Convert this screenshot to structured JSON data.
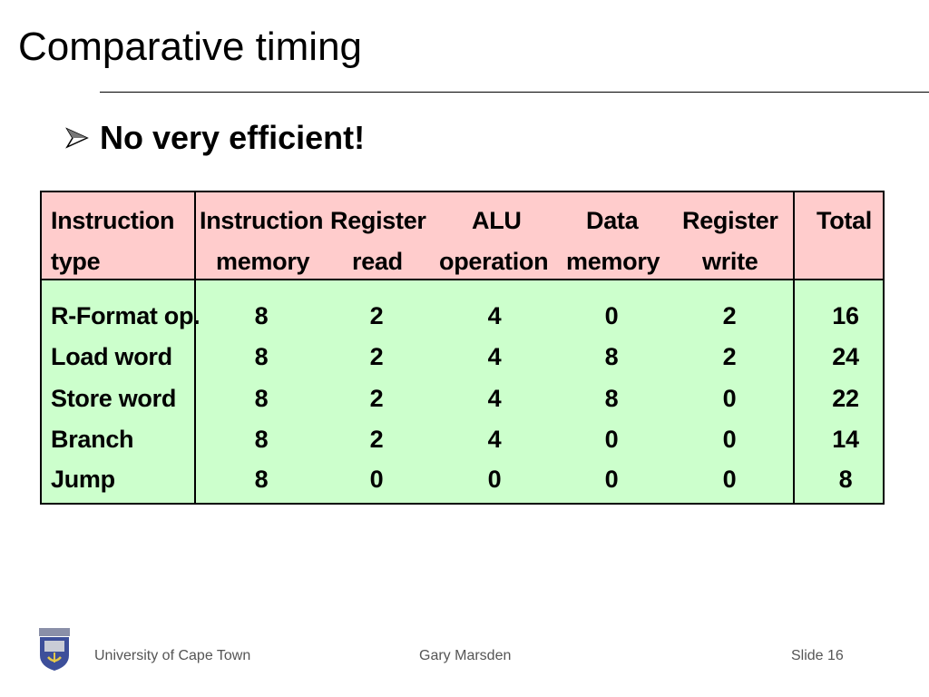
{
  "slide": {
    "title": "Comparative timing",
    "bullet": "No very efficient!"
  },
  "table": {
    "header_line1": [
      "Instruction",
      "Instruction",
      "Register",
      "ALU",
      "Data",
      "Register",
      "Total"
    ],
    "header_line2": [
      "type",
      "memory",
      "read",
      "operation",
      "memory",
      "write",
      ""
    ],
    "rows": [
      [
        "R-Format op.",
        "8",
        "2",
        "4",
        "0",
        "2",
        "16"
      ],
      [
        "Load word",
        "8",
        "2",
        "4",
        "8",
        "2",
        "24"
      ],
      [
        "Store word",
        "8",
        "2",
        "4",
        "8",
        "0",
        "22"
      ],
      [
        "Branch",
        "8",
        "2",
        "4",
        "0",
        "0",
        "14"
      ],
      [
        "Jump",
        "8",
        "0",
        "0",
        "0",
        "0",
        "8"
      ]
    ],
    "colors": {
      "header_bg": "#ffcccc",
      "body_bg": "#ccffcc"
    }
  },
  "footer": {
    "institution": "University of Cape Town",
    "author": "Gary Marsden",
    "slide_label": "Slide 16",
    "logo_icon": "university-crest-icon"
  }
}
